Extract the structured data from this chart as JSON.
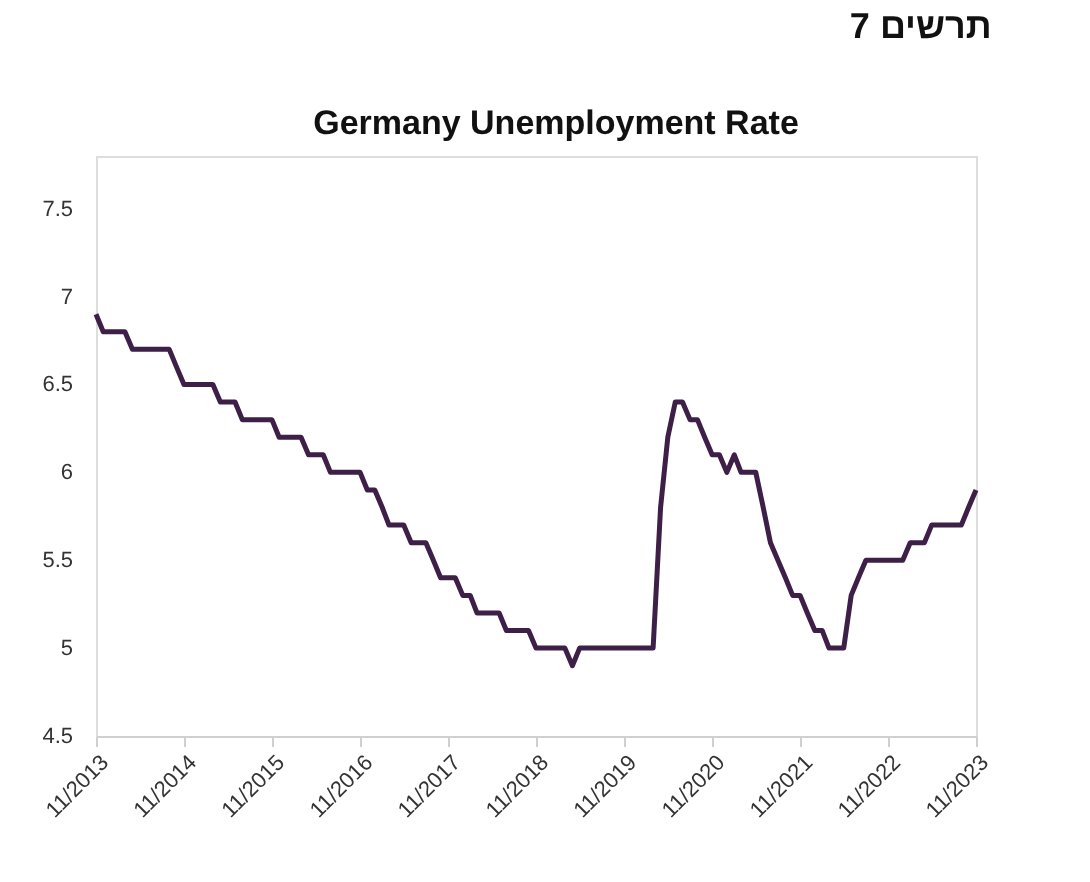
{
  "chart_data": {
    "type": "line",
    "title": "תרשים 7",
    "subtitle": "Germany Unemployment Rate",
    "x": [
      "2013-11",
      "2013-12",
      "2014-03",
      "2014-04",
      "2014-09",
      "2014-10",
      "2014-11",
      "2015-03",
      "2015-04",
      "2015-06",
      "2015-07",
      "2015-11",
      "2015-12",
      "2016-03",
      "2016-04",
      "2016-06",
      "2016-07",
      "2016-11",
      "2016-12",
      "2017-01",
      "2017-02",
      "2017-03",
      "2017-05",
      "2017-06",
      "2017-08",
      "2017-09",
      "2017-10",
      "2017-12",
      "2018-01",
      "2018-02",
      "2018-03",
      "2018-06",
      "2018-07",
      "2018-10",
      "2018-11",
      "2019-03",
      "2019-04",
      "2019-05",
      "2020-03",
      "2020-04",
      "2020-05",
      "2020-06",
      "2020-07",
      "2020-08",
      "2020-09",
      "2020-10",
      "2020-11",
      "2020-12",
      "2021-01",
      "2021-02",
      "2021-03",
      "2021-05",
      "2021-06",
      "2021-07",
      "2021-08",
      "2021-09",
      "2021-10",
      "2021-11",
      "2021-12",
      "2022-01",
      "2022-02",
      "2022-03",
      "2022-05",
      "2022-06",
      "2022-07",
      "2022-08",
      "2023-01",
      "2023-02",
      "2023-04",
      "2023-05",
      "2023-09",
      "2023-10",
      "2023-11"
    ],
    "series": [
      {
        "color": "#3d1f47",
        "values": [
          6.9,
          6.8,
          6.8,
          6.7,
          6.7,
          6.6,
          6.5,
          6.5,
          6.4,
          6.4,
          6.3,
          6.3,
          6.2,
          6.2,
          6.1,
          6.1,
          6.0,
          6.0,
          5.9,
          5.9,
          5.8,
          5.7,
          5.7,
          5.6,
          5.6,
          5.5,
          5.4,
          5.4,
          5.3,
          5.3,
          5.2,
          5.2,
          5.1,
          5.1,
          5.0,
          5.0,
          4.9,
          5.0,
          5.0,
          5.8,
          6.2,
          6.4,
          6.4,
          6.3,
          6.3,
          6.2,
          6.1,
          6.1,
          6.0,
          6.1,
          6.0,
          6.0,
          5.8,
          5.6,
          5.5,
          5.4,
          5.3,
          5.3,
          5.2,
          5.1,
          5.1,
          5.0,
          5.0,
          5.3,
          5.4,
          5.5,
          5.5,
          5.6,
          5.6,
          5.7,
          5.7,
          5.8,
          5.9
        ]
      }
    ],
    "ylim": [
      4.5,
      7.8
    ],
    "yticks": [
      4.5,
      5,
      5.5,
      6,
      6.5,
      7,
      7.5
    ],
    "xlim": [
      "2013-11",
      "2023-11"
    ],
    "xticks": [
      {
        "value": "2013-11",
        "label": "11/2013"
      },
      {
        "value": "2014-11",
        "label": "11/2014"
      },
      {
        "value": "2015-11",
        "label": "11/2015"
      },
      {
        "value": "2016-11",
        "label": "11/2016"
      },
      {
        "value": "2017-11",
        "label": "11/2017"
      },
      {
        "value": "2018-11",
        "label": "11/2018"
      },
      {
        "value": "2019-11",
        "label": "11/2019"
      },
      {
        "value": "2020-11",
        "label": "11/2020"
      },
      {
        "value": "2021-11",
        "label": "11/2021"
      },
      {
        "value": "2022-11",
        "label": "11/2022"
      },
      {
        "value": "2023-11",
        "label": "11/2023"
      }
    ],
    "grid": false,
    "marker": "none",
    "line_style": "solid"
  }
}
